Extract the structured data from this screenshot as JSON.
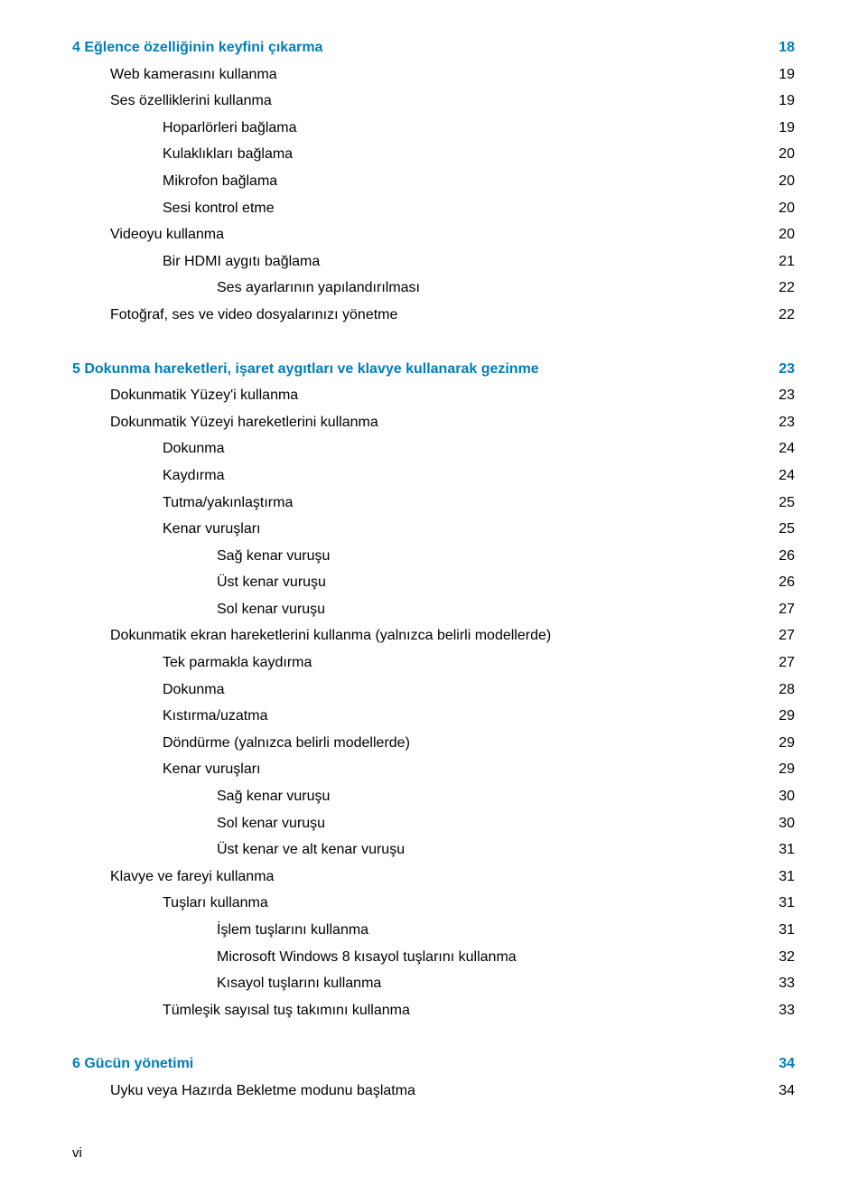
{
  "colors": {
    "link_blue": "#007dba",
    "text": "#000000",
    "bg": "#ffffff"
  },
  "typography": {
    "body_pt": 16,
    "line_height": 1.85,
    "font_family": "Arial"
  },
  "footer": "vi",
  "toc": [
    {
      "label": "4  Eğlence özelliğinin keyfini çıkarma",
      "page": "18",
      "indent": 0,
      "chapter": true
    },
    {
      "label": "Web kamerasını kullanma",
      "page": "19",
      "indent": 1
    },
    {
      "label": "Ses özelliklerini kullanma",
      "page": "19",
      "indent": 1
    },
    {
      "label": "Hoparlörleri bağlama",
      "page": "19",
      "indent": 2
    },
    {
      "label": "Kulaklıkları bağlama",
      "page": "20",
      "indent": 2
    },
    {
      "label": "Mikrofon bağlama",
      "page": "20",
      "indent": 2
    },
    {
      "label": "Sesi kontrol etme",
      "page": "20",
      "indent": 2
    },
    {
      "label": "Videoyu kullanma",
      "page": "20",
      "indent": 1
    },
    {
      "label": "Bir HDMI aygıtı bağlama",
      "page": "21",
      "indent": 2
    },
    {
      "label": "Ses ayarlarının yapılandırılması",
      "page": "22",
      "indent": 3
    },
    {
      "label": "Fotoğraf, ses ve video dosyalarınızı yönetme",
      "page": "22",
      "indent": 1
    },
    {
      "spacer": true
    },
    {
      "label": "5  Dokunma hareketleri, işaret aygıtları ve klavye kullanarak gezinme",
      "page": "23",
      "indent": 0,
      "chapter": true
    },
    {
      "label": "Dokunmatik Yüzey'i kullanma",
      "page": "23",
      "indent": 1
    },
    {
      "label": "Dokunmatik Yüzeyi hareketlerini kullanma",
      "page": "23",
      "indent": 1
    },
    {
      "label": "Dokunma",
      "page": "24",
      "indent": 2
    },
    {
      "label": "Kaydırma",
      "page": "24",
      "indent": 2
    },
    {
      "label": "Tutma/yakınlaştırma",
      "page": "25",
      "indent": 2
    },
    {
      "label": "Kenar vuruşları",
      "page": "25",
      "indent": 2
    },
    {
      "label": "Sağ kenar vuruşu",
      "page": "26",
      "indent": 3
    },
    {
      "label": "Üst kenar vuruşu",
      "page": "26",
      "indent": 3
    },
    {
      "label": "Sol kenar vuruşu",
      "page": "27",
      "indent": 3
    },
    {
      "label": "Dokunmatik ekran hareketlerini kullanma (yalnızca belirli modellerde)",
      "page": "27",
      "indent": 1
    },
    {
      "label": "Tek parmakla kaydırma",
      "page": "27",
      "indent": 2
    },
    {
      "label": "Dokunma",
      "page": "28",
      "indent": 2
    },
    {
      "label": "Kıstırma/uzatma",
      "page": "29",
      "indent": 2
    },
    {
      "label": "Döndürme (yalnızca belirli modellerde)",
      "page": "29",
      "indent": 2
    },
    {
      "label": "Kenar vuruşları",
      "page": "29",
      "indent": 2
    },
    {
      "label": "Sağ kenar vuruşu",
      "page": "30",
      "indent": 3
    },
    {
      "label": "Sol kenar vuruşu",
      "page": "30",
      "indent": 3
    },
    {
      "label": "Üst kenar ve alt kenar vuruşu",
      "page": "31",
      "indent": 3
    },
    {
      "label": "Klavye ve fareyi kullanma",
      "page": "31",
      "indent": 1
    },
    {
      "label": "Tuşları kullanma",
      "page": "31",
      "indent": 2
    },
    {
      "label": "İşlem tuşlarını kullanma",
      "page": "31",
      "indent": 3
    },
    {
      "label": "Microsoft Windows 8 kısayol tuşlarını kullanma",
      "page": "32",
      "indent": 3
    },
    {
      "label": "Kısayol tuşlarını kullanma",
      "page": "33",
      "indent": 3
    },
    {
      "label": "Tümleşik sayısal tuş takımını kullanma",
      "page": "33",
      "indent": 2
    },
    {
      "spacer": true
    },
    {
      "label": "6  Gücün yönetimi",
      "page": "34",
      "indent": 0,
      "chapter": true
    },
    {
      "label": "Uyku veya Hazırda Bekletme modunu başlatma",
      "page": "34",
      "indent": 1
    }
  ]
}
